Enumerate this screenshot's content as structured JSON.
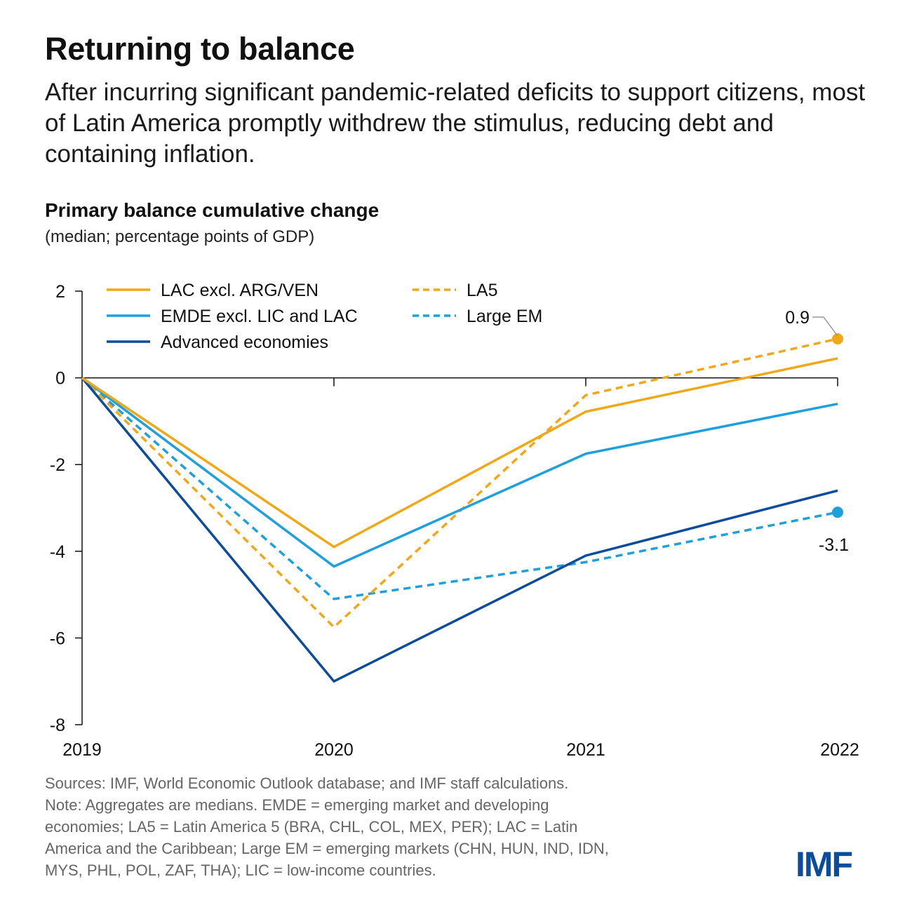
{
  "header": {
    "title": "Returning to balance",
    "subtitle": "After incurring significant pandemic-related deficits to support citizens, most of Latin America promptly withdrew the stimulus, reducing debt and containing inflation."
  },
  "chart_data": {
    "type": "line",
    "title": "Primary balance cumulative change",
    "subtitle": "(median; percentage points of GDP)",
    "xlabel": "",
    "ylabel": "",
    "x": [
      "2019",
      "2020",
      "2021",
      "2022"
    ],
    "ylim": [
      -8,
      2
    ],
    "yticks": [
      2,
      0,
      -2,
      -4,
      -6,
      -8
    ],
    "ytick_labels": [
      "2",
      "0",
      "-2",
      "-4",
      "-6",
      "-8"
    ],
    "grid": false,
    "legend_position": "top-left",
    "series": [
      {
        "name": "LAC excl. ARG/VEN",
        "color": "#f0a818",
        "dashed": false,
        "values": [
          0,
          -3.9,
          -0.78,
          0.45
        ]
      },
      {
        "name": "EMDE excl. LIC and LAC",
        "color": "#1ea0dc",
        "dashed": false,
        "values": [
          0,
          -4.35,
          -1.75,
          -0.6
        ]
      },
      {
        "name": "Advanced economies",
        "color": "#0b4c9c",
        "dashed": false,
        "values": [
          0,
          -7.0,
          -4.1,
          -2.6
        ]
      },
      {
        "name": "LA5",
        "color": "#f0a818",
        "dashed": true,
        "values": [
          0,
          -5.75,
          -0.4,
          0.9
        ]
      },
      {
        "name": "Large EM",
        "color": "#1ea0dc",
        "dashed": true,
        "values": [
          0,
          -5.1,
          -4.25,
          -3.1
        ]
      }
    ],
    "annotations": [
      {
        "series": "LA5",
        "x": "2022",
        "value": 0.9,
        "label": "0.9"
      },
      {
        "series": "Large EM",
        "x": "2022",
        "value": -3.1,
        "label": "-3.1"
      }
    ]
  },
  "footer": {
    "notes": [
      "Sources: IMF, World Economic Outlook database; and IMF staff calculations.",
      "Note: Aggregates are medians. EMDE = emerging market and developing",
      "economies; LA5 = Latin America 5 (BRA, CHL, COL, MEX, PER); LAC = Latin",
      "America and the Caribbean; Large EM = emerging markets (CHN, HUN, IND, IDN,",
      "MYS, PHL, POL, ZAF, THA); LIC = low-income countries."
    ],
    "logo": "IMF"
  }
}
